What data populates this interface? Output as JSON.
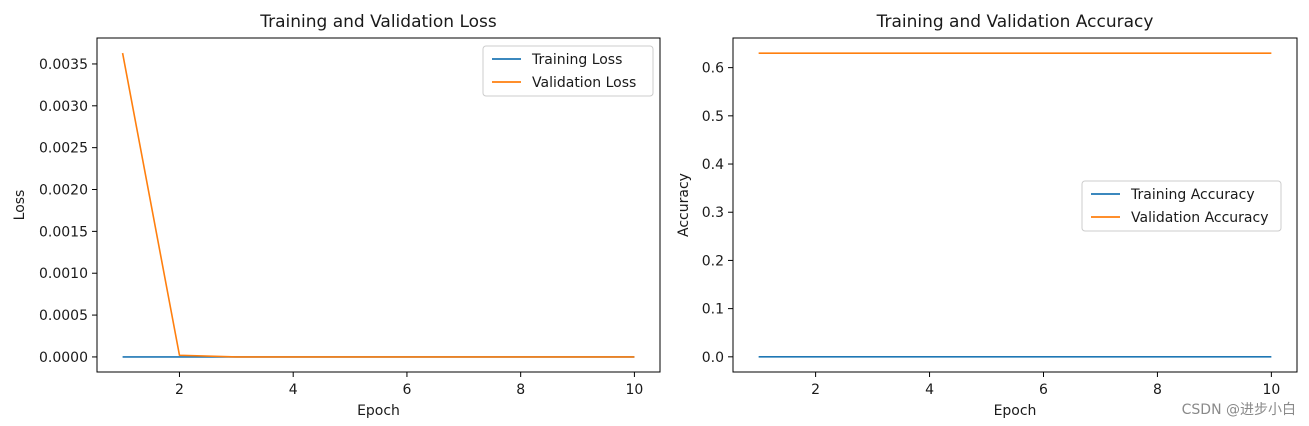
{
  "colors": {
    "training": "#1f77b4",
    "validation": "#ff7f0e",
    "axis": "#000000",
    "legend_border": "#cccccc"
  },
  "watermark": "CSDN @进步小白",
  "chart_data": [
    {
      "type": "line",
      "title": "Training and Validation Loss",
      "xlabel": "Epoch",
      "ylabel": "Loss",
      "xlim": [
        0.55,
        10.45
      ],
      "ylim": [
        -0.00018,
        0.00381
      ],
      "xticks": [
        2,
        4,
        6,
        8,
        10
      ],
      "xtick_labels": [
        "2",
        "4",
        "6",
        "8",
        "10"
      ],
      "yticks": [
        0,
        0.0005,
        0.001,
        0.0015,
        0.002,
        0.0025,
        0.003,
        0.0035
      ],
      "ytick_labels": [
        "0.0000",
        "0.0005",
        "0.0010",
        "0.0015",
        "0.0020",
        "0.0025",
        "0.0030",
        "0.0035"
      ],
      "legend_position": "upper right",
      "grid": false,
      "x": [
        1,
        2,
        3,
        4,
        5,
        6,
        7,
        8,
        9,
        10
      ],
      "series": [
        {
          "name": "Training Loss",
          "color": "#1f77b4",
          "values": [
            0,
            0,
            0,
            0,
            0,
            0,
            0,
            0,
            0,
            0
          ]
        },
        {
          "name": "Validation Loss",
          "color": "#ff7f0e",
          "values": [
            0.00363,
            2e-05,
            0,
            0,
            0,
            0,
            0,
            0,
            0,
            0
          ]
        }
      ]
    },
    {
      "type": "line",
      "title": "Training and Validation Accuracy",
      "xlabel": "Epoch",
      "ylabel": "Accuracy",
      "xlim": [
        0.55,
        10.45
      ],
      "ylim": [
        -0.0315,
        0.6615
      ],
      "xticks": [
        2,
        4,
        6,
        8,
        10
      ],
      "xtick_labels": [
        "2",
        "4",
        "6",
        "8",
        "10"
      ],
      "yticks": [
        0,
        0.1,
        0.2,
        0.3,
        0.4,
        0.5,
        0.6
      ],
      "ytick_labels": [
        "0.0",
        "0.1",
        "0.2",
        "0.3",
        "0.4",
        "0.5",
        "0.6"
      ],
      "legend_position": "center right",
      "grid": false,
      "x": [
        1,
        2,
        3,
        4,
        5,
        6,
        7,
        8,
        9,
        10
      ],
      "series": [
        {
          "name": "Training Accuracy",
          "color": "#1f77b4",
          "values": [
            0,
            0,
            0,
            0,
            0,
            0,
            0,
            0,
            0,
            0
          ]
        },
        {
          "name": "Validation Accuracy",
          "color": "#ff7f0e",
          "values": [
            0.63,
            0.63,
            0.63,
            0.63,
            0.63,
            0.63,
            0.63,
            0.63,
            0.63,
            0.63
          ]
        }
      ]
    }
  ]
}
